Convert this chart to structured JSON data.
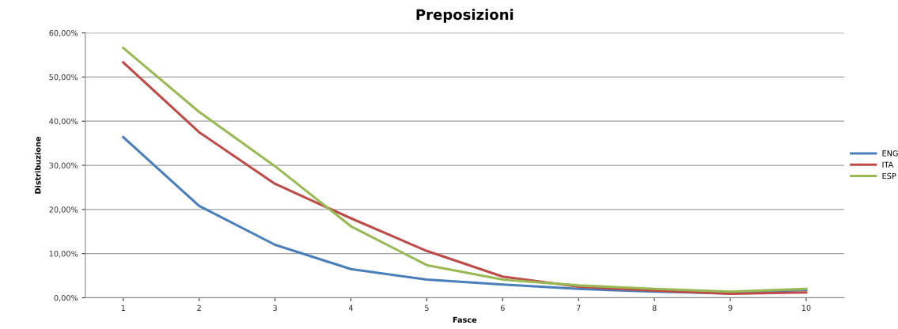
{
  "chart_data": {
    "type": "line",
    "title": "Preposizioni",
    "xlabel": "Fasce",
    "ylabel": "Distribuzione",
    "categories": [
      "1",
      "2",
      "3",
      "4",
      "5",
      "6",
      "7",
      "8",
      "9",
      "10"
    ],
    "series": [
      {
        "name": "ENG",
        "color": "#4a7ebb",
        "values": [
          36.4,
          20.8,
          12.0,
          6.5,
          4.1,
          3.0,
          2.0,
          1.4,
          1.0,
          1.8
        ]
      },
      {
        "name": "ITA",
        "color": "#be4b48",
        "values": [
          53.3,
          37.5,
          25.8,
          18.0,
          10.6,
          4.8,
          2.5,
          1.6,
          0.9,
          1.2
        ]
      },
      {
        "name": "ESP",
        "color": "#98b954",
        "values": [
          56.6,
          42.1,
          29.8,
          16.2,
          7.4,
          4.1,
          2.8,
          2.0,
          1.4,
          2.0
        ]
      }
    ],
    "ylim": [
      0,
      60
    ],
    "yticks": [
      {
        "value": 0,
        "label": "0,00%"
      },
      {
        "value": 10,
        "label": "10,00%"
      },
      {
        "value": 20,
        "label": "20,00%"
      },
      {
        "value": 30,
        "label": "30,00%"
      },
      {
        "value": 40,
        "label": "40,00%"
      },
      {
        "value": 50,
        "label": "50,00%"
      },
      {
        "value": 60,
        "label": "60,00%"
      }
    ],
    "grid": "y",
    "legend": "right",
    "marker": "none",
    "line_style": "solid"
  }
}
